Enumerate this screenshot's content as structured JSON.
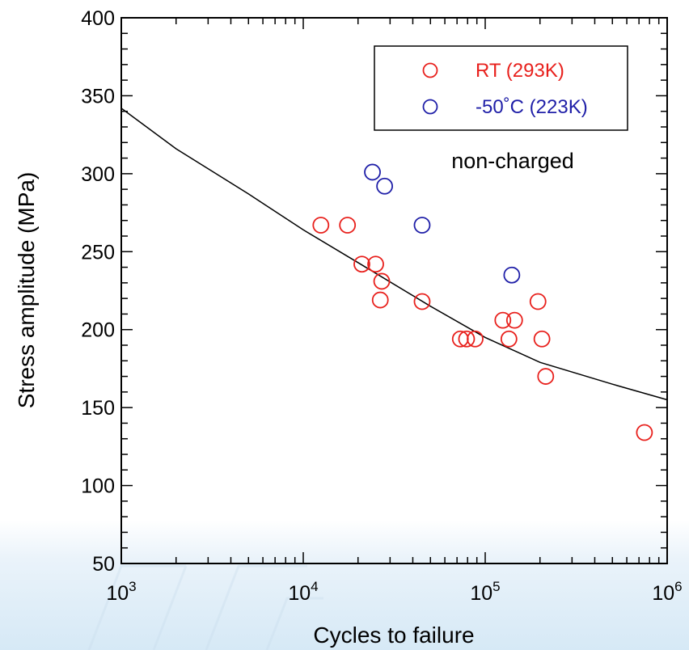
{
  "chart_data": {
    "type": "scatter",
    "xlabel": "Cycles to failure",
    "ylabel": "Stress amplitude (MPa)",
    "x_scale": "log",
    "xlim": [
      1000,
      1000000
    ],
    "ylim": [
      50,
      400
    ],
    "x_ticks": [
      1000,
      10000,
      100000,
      1000000
    ],
    "x_tick_labels": [
      "10^3",
      "10^4",
      "10^5",
      "10^6"
    ],
    "y_ticks": [
      50,
      100,
      150,
      200,
      250,
      300,
      350,
      400
    ],
    "y_tick_labels": [
      "50",
      "100",
      "150",
      "200",
      "250",
      "300",
      "350",
      "400"
    ],
    "annotation": "non-charged",
    "legend_position": "top-right",
    "series": [
      {
        "name": "RT (293K)",
        "color": "#e8201c",
        "marker": "open-circle",
        "points": [
          [
            12500,
            267
          ],
          [
            17500,
            267
          ],
          [
            21000,
            242
          ],
          [
            25000,
            242
          ],
          [
            27000,
            231
          ],
          [
            26500,
            219
          ],
          [
            45000,
            218
          ],
          [
            73000,
            194
          ],
          [
            79000,
            194
          ],
          [
            88000,
            194
          ],
          [
            125000,
            206
          ],
          [
            145000,
            206
          ],
          [
            135000,
            194
          ],
          [
            195000,
            218
          ],
          [
            205000,
            194
          ],
          [
            215000,
            170
          ],
          [
            750000,
            134
          ]
        ]
      },
      {
        "name": "-50˚C (223K)",
        "color": "#1f1fa8",
        "marker": "open-circle",
        "points": [
          [
            24000,
            301
          ],
          [
            28000,
            292
          ],
          [
            45000,
            267
          ],
          [
            140000,
            235
          ]
        ]
      }
    ],
    "fit_curve": {
      "color": "#000000",
      "points": [
        [
          1000,
          342
        ],
        [
          2000,
          316
        ],
        [
          5000,
          287
        ],
        [
          10000,
          264
        ],
        [
          20000,
          243
        ],
        [
          50000,
          215
        ],
        [
          100000,
          195
        ],
        [
          200000,
          179
        ],
        [
          500000,
          165
        ],
        [
          1000000,
          155
        ]
      ]
    }
  }
}
